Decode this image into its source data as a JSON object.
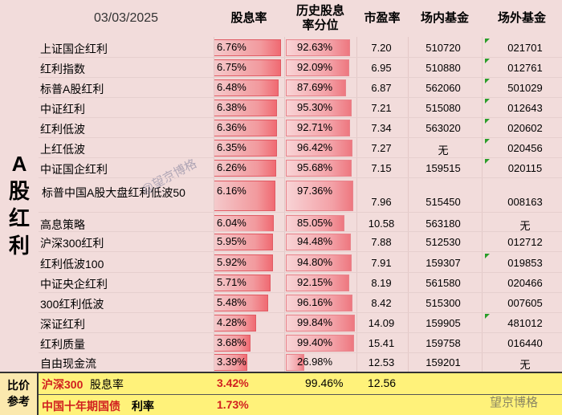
{
  "header": {
    "date": "03/03/2025",
    "col_yield": "股息率",
    "col_hist_line1": "历史股息",
    "col_hist_line2": "率分位",
    "col_pe": "市盈率",
    "col_etf": "场内基金",
    "col_otc": "场外基金"
  },
  "group_label": [
    "A",
    "股",
    "红",
    "利"
  ],
  "rows": [
    {
      "name": "上证国企红利",
      "yield": "6.76%",
      "yield_value": 6.76,
      "pct": "92.63%",
      "pct_value": 92.63,
      "pe": "7.20",
      "etf": "510720",
      "otc": "021701"
    },
    {
      "name": "红利指数",
      "yield": "6.75%",
      "yield_value": 6.75,
      "pct": "92.09%",
      "pct_value": 92.09,
      "pe": "6.95",
      "etf": "510880",
      "otc": "012761"
    },
    {
      "name": "标普A股红利",
      "yield": "6.48%",
      "yield_value": 6.48,
      "pct": "87.69%",
      "pct_value": 87.69,
      "pe": "6.87",
      "etf": "562060",
      "otc": "501029"
    },
    {
      "name": "中证红利",
      "yield": "6.38%",
      "yield_value": 6.38,
      "pct": "95.30%",
      "pct_value": 95.3,
      "pe": "7.21",
      "etf": "515080",
      "otc": "012643"
    },
    {
      "name": "红利低波",
      "yield": "6.36%",
      "yield_value": 6.36,
      "pct": "92.71%",
      "pct_value": 92.71,
      "pe": "7.34",
      "etf": "563020",
      "otc": "020602"
    },
    {
      "name": "上红低波",
      "yield": "6.35%",
      "yield_value": 6.35,
      "pct": "96.42%",
      "pct_value": 96.42,
      "pe": "7.27",
      "etf": "无",
      "otc": "020456"
    },
    {
      "name": "中证国企红利",
      "yield": "6.26%",
      "yield_value": 6.26,
      "pct": "95.68%",
      "pct_value": 95.68,
      "pe": "7.15",
      "etf": "159515",
      "otc": "020115"
    },
    {
      "name": "标普中国A股大盘红利低波50",
      "yield": "6.16%",
      "yield_value": 6.16,
      "pct": "97.36%",
      "pct_value": 97.36,
      "pe": "7.96",
      "etf": "515450",
      "otc": "008163"
    },
    {
      "name": "高息策略",
      "yield": "6.04%",
      "yield_value": 6.04,
      "pct": "85.05%",
      "pct_value": 85.05,
      "pe": "10.58",
      "etf": "563180",
      "otc": "无"
    },
    {
      "name": "沪深300红利",
      "yield": "5.95%",
      "yield_value": 5.95,
      "pct": "94.48%",
      "pct_value": 94.48,
      "pe": "7.88",
      "etf": "512530",
      "otc": "012712"
    },
    {
      "name": "红利低波100",
      "yield": "5.92%",
      "yield_value": 5.92,
      "pct": "94.80%",
      "pct_value": 94.8,
      "pe": "7.91",
      "etf": "159307",
      "otc": "019853"
    },
    {
      "name": "中证央企红利",
      "yield": "5.71%",
      "yield_value": 5.71,
      "pct": "92.15%",
      "pct_value": 92.15,
      "pe": "8.19",
      "etf": "561580",
      "otc": "020466"
    },
    {
      "name": "300红利低波",
      "yield": "5.48%",
      "yield_value": 5.48,
      "pct": "96.16%",
      "pct_value": 96.16,
      "pe": "8.42",
      "etf": "515300",
      "otc": "007605"
    },
    {
      "name": "深证红利",
      "yield": "4.28%",
      "yield_value": 4.28,
      "pct": "99.84%",
      "pct_value": 99.84,
      "pe": "14.09",
      "etf": "159905",
      "otc": "481012"
    },
    {
      "name": "红利质量",
      "yield": "3.68%",
      "yield_value": 3.68,
      "pct": "99.40%",
      "pct_value": 99.4,
      "pe": "15.41",
      "etf": "159758",
      "otc": "016440"
    },
    {
      "name": "自由现金流",
      "yield": "3.39%",
      "yield_value": 3.39,
      "pct": "26.98%",
      "pct_value": 26.98,
      "pe": "12.53",
      "etf": "159201",
      "otc": "无"
    }
  ],
  "footer": {
    "left_label": [
      "比价",
      "参考"
    ],
    "row1": {
      "name_red": "沪深300",
      "name_black": "股息率",
      "yield": "3.42%",
      "pct": "99.46%",
      "pe": "12.56"
    },
    "row2": {
      "name_red": "中国十年期国债",
      "name_black": "利率",
      "yield": "1.73%"
    }
  },
  "watermarks": {
    "diagonal": "@望京博格",
    "bottom": "望京博格"
  },
  "colors": {
    "header_bg": "#f2dcdb",
    "footer_bg": "#fff27a",
    "bar_red": "#f06a72",
    "accent_red": "#d11f1f",
    "marker_green": "#2a9d2a"
  }
}
